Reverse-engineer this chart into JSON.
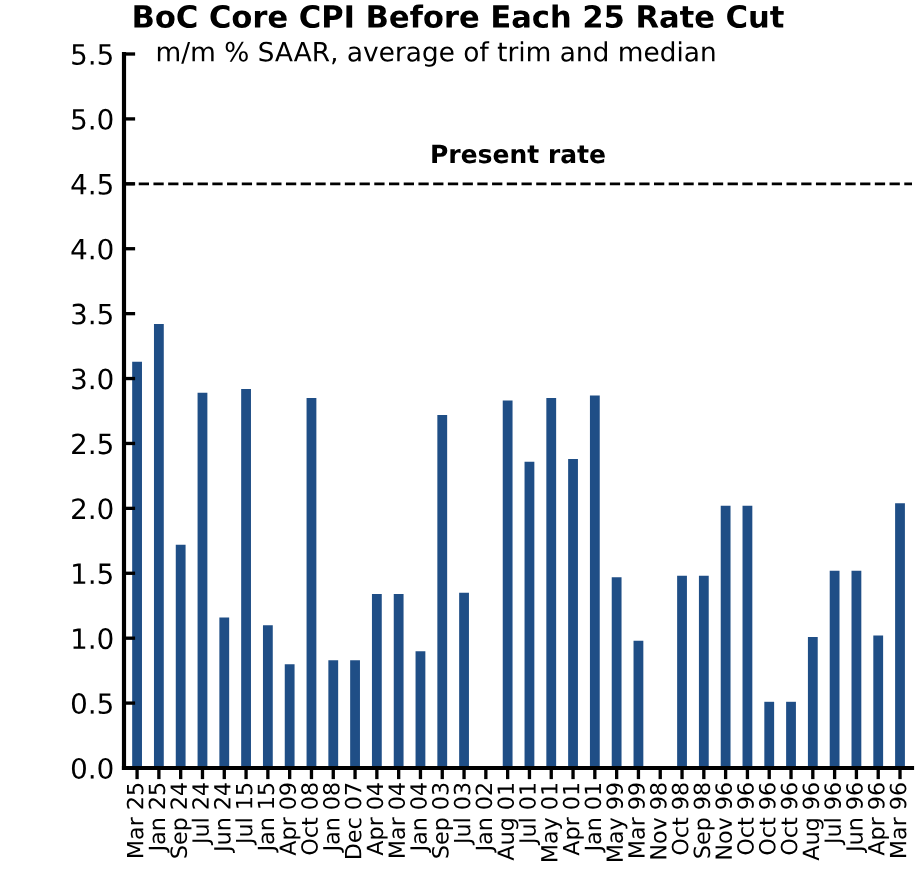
{
  "chart_data": {
    "type": "bar",
    "title": "BoC Core CPI Before Each 25 Rate Cut",
    "subtitle": "m/m % SAAR, average of trim and median",
    "categories": [
      "Mar 25",
      "Jan 25",
      "Sep 24",
      "Jul 24",
      "Jun 24",
      "Jul 15",
      "Jan 15",
      "Apr 09",
      "Oct 08",
      "Jan 08",
      "Dec 07",
      "Apr 04",
      "Mar 04",
      "Jan 04",
      "Sep 03",
      "Jul 03",
      "Jan 02",
      "Aug 01",
      "Jul 01",
      "May 01",
      "Apr 01",
      "Jan 01",
      "May 99",
      "Mar 99",
      "Nov 98",
      "Oct 98",
      "Sep 98",
      "Nov 96",
      "Oct 96",
      "Oct 96",
      "Oct 96",
      "Aug 96",
      "Jul 96",
      "Jun 96",
      "Apr 96",
      "Mar 96"
    ],
    "values": [
      3.13,
      3.42,
      1.72,
      2.89,
      1.16,
      2.92,
      1.1,
      0.8,
      2.85,
      0.83,
      0.83,
      1.34,
      1.34,
      0.9,
      2.72,
      1.35,
      0.01,
      2.83,
      2.36,
      2.85,
      2.38,
      2.87,
      1.47,
      0.98,
      0,
      1.48,
      1.48,
      2.02,
      2.02,
      0.51,
      0.51,
      1.01,
      1.52,
      1.52,
      1.02,
      2.04
    ],
    "color": "#1f4e86",
    "ylim": [
      0.0,
      5.5
    ],
    "yticks": [
      {
        "value": 0,
        "label": "0.0"
      },
      0.5,
      {
        "value": 1,
        "label": "1.0"
      },
      1.5,
      {
        "value": 2,
        "label": "2.0"
      },
      2.5,
      {
        "value": 3,
        "label": "3.0"
      },
      3.5,
      {
        "value": 4,
        "label": "4.0"
      },
      4.5,
      {
        "value": 5,
        "label": "5.0"
      },
      5.5
    ],
    "ref_lines": [
      {
        "axis": "y",
        "value": 4.5,
        "label": "Present rate",
        "color": "#000000",
        "line_style": "dashed"
      }
    ],
    "grid": false
  }
}
